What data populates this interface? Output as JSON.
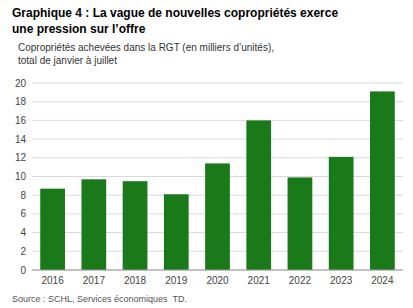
{
  "chart_data": {
    "type": "bar",
    "title": [
      "Graphique 4 : La vague de nouvelles copropriétés exerce",
      "une pression sur l’offre"
    ],
    "subtitle": [
      "Copropriétés achevées dans la RGT (en milliers d’unités),",
      "total de janvier à juillet"
    ],
    "source": "Source : SCHL, Services économiques  TD.",
    "categories": [
      "2016",
      "2017",
      "2018",
      "2019",
      "2020",
      "2021",
      "2022",
      "2023",
      "2024"
    ],
    "values": [
      8.7,
      9.7,
      9.5,
      8.1,
      11.4,
      16.0,
      9.9,
      12.1,
      19.1
    ],
    "color": "#1a7a1a",
    "ylim": [
      0,
      20
    ],
    "yticks": [
      0,
      2,
      4,
      6,
      8,
      10,
      12,
      14,
      16,
      18,
      20
    ],
    "grid": true
  }
}
